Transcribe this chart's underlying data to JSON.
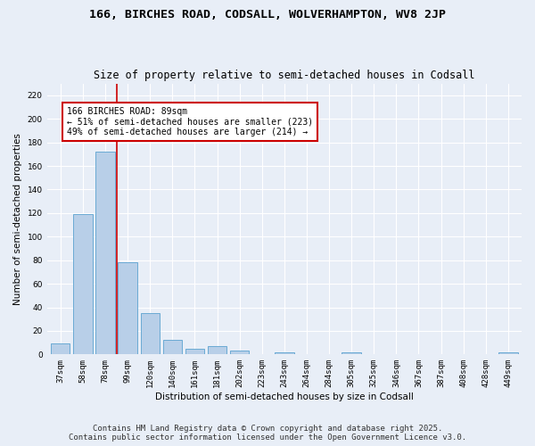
{
  "title1": "166, BIRCHES ROAD, CODSALL, WOLVERHAMPTON, WV8 2JP",
  "title2": "Size of property relative to semi-detached houses in Codsall",
  "xlabel": "Distribution of semi-detached houses by size in Codsall",
  "ylabel": "Number of semi-detached properties",
  "categories": [
    "37sqm",
    "58sqm",
    "78sqm",
    "99sqm",
    "120sqm",
    "140sqm",
    "161sqm",
    "181sqm",
    "202sqm",
    "223sqm",
    "243sqm",
    "264sqm",
    "284sqm",
    "305sqm",
    "325sqm",
    "346sqm",
    "367sqm",
    "387sqm",
    "408sqm",
    "428sqm",
    "449sqm"
  ],
  "values": [
    9,
    119,
    172,
    78,
    35,
    12,
    5,
    7,
    3,
    0,
    2,
    0,
    0,
    2,
    0,
    0,
    0,
    0,
    0,
    0,
    2
  ],
  "bar_color": "#b8cfe8",
  "bar_edge_color": "#6aaad4",
  "vline_x": 2.5,
  "vline_color": "#cc0000",
  "annotation_text": "166 BIRCHES ROAD: 89sqm\n← 51% of semi-detached houses are smaller (223)\n49% of semi-detached houses are larger (214) →",
  "annotation_box_color": "#ffffff",
  "annotation_edge_color": "#cc0000",
  "ylim": [
    0,
    230
  ],
  "yticks": [
    0,
    20,
    40,
    60,
    80,
    100,
    120,
    140,
    160,
    180,
    200,
    220
  ],
  "bg_color": "#e8eef7",
  "plot_bg_color": "#e8eef7",
  "footer": "Contains HM Land Registry data © Crown copyright and database right 2025.\nContains public sector information licensed under the Open Government Licence v3.0.",
  "title_fontsize": 9.5,
  "subtitle_fontsize": 8.5,
  "axis_label_fontsize": 7.5,
  "tick_fontsize": 6.5,
  "annotation_fontsize": 7,
  "footer_fontsize": 6.5
}
